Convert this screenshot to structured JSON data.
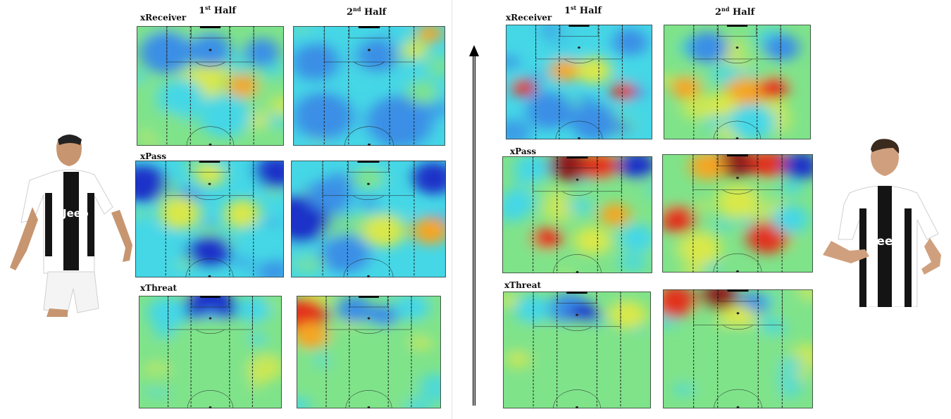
{
  "titles": {
    "first_half": {
      "ordinal": "1",
      "suffix": "st",
      "word": "Half"
    },
    "second_half": {
      "ordinal": "2",
      "suffix": "nd",
      "word": "Half"
    }
  },
  "metrics": {
    "receiver": "xReceiver",
    "pass": "xPass",
    "threat": "xThreat"
  },
  "colorscale": [
    "#1f30c8",
    "#3a8fe6",
    "#45d7e6",
    "#7fe38a",
    "#d9e84a",
    "#f5a623",
    "#e2311f",
    "#8b1a1a"
  ],
  "players": {
    "left": {
      "icon": "player-photo-left",
      "kit_colors": [
        "#ffffff",
        "#111111"
      ],
      "sponsor": "Jeep"
    },
    "right": {
      "icon": "player-photo-right",
      "kit_colors": [
        "#ffffff",
        "#111111"
      ],
      "sponsor": "Jeep"
    }
  }
}
